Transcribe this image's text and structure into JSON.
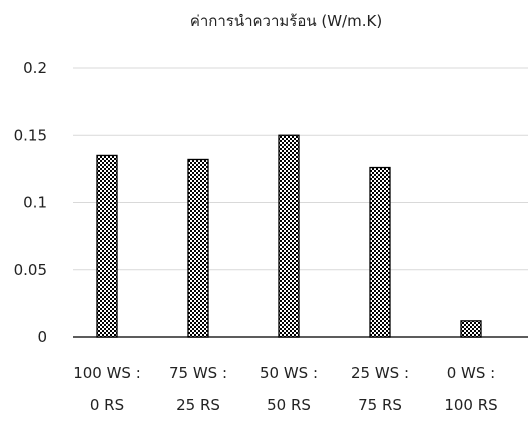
{
  "chart_data": {
    "type": "bar",
    "title": "ค่าการนำความร้อน (W/m.K)",
    "xlabel": "",
    "ylabel": "",
    "categories": [
      [
        "100 WS :",
        "0 RS"
      ],
      [
        "75 WS :",
        "25 RS"
      ],
      [
        "50 WS :",
        "50 RS"
      ],
      [
        "25 WS :",
        "75 RS"
      ],
      [
        "0 WS :",
        "100 RS"
      ]
    ],
    "values": [
      0.135,
      0.132,
      0.15,
      0.126,
      0.012
    ],
    "ylim": [
      0,
      0.2
    ],
    "yticks": [
      {
        "value": 0,
        "label": "0"
      },
      {
        "value": 0.05,
        "label": "0.05"
      },
      {
        "value": 0.1,
        "label": "0.1"
      },
      {
        "value": 0.15,
        "label": "0.15"
      },
      {
        "value": 0.2,
        "label": "0.2"
      }
    ],
    "grid": true,
    "legend": "none",
    "bar_pattern": "checkered",
    "bar_color": "#000000"
  }
}
